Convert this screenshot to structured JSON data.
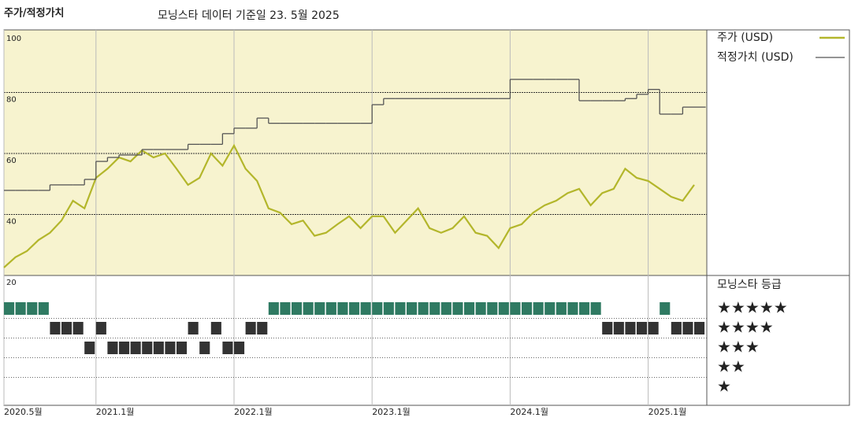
{
  "chart_data": {
    "type": "line",
    "title": "주가/적정가치",
    "subtitle": "모닝스타 데이터 기준일 23. 5월 2025",
    "x": [
      "2020-05",
      "2020-06",
      "2020-07",
      "2020-08",
      "2020-09",
      "2020-10",
      "2020-11",
      "2020-12",
      "2021-01",
      "2021-02",
      "2021-03",
      "2021-04",
      "2021-05",
      "2021-06",
      "2021-07",
      "2021-08",
      "2021-09",
      "2021-10",
      "2021-11",
      "2021-12",
      "2022-01",
      "2022-02",
      "2022-03",
      "2022-04",
      "2022-05",
      "2022-06",
      "2022-07",
      "2022-08",
      "2022-09",
      "2022-10",
      "2022-11",
      "2022-12",
      "2023-01",
      "2023-02",
      "2023-03",
      "2023-04",
      "2023-05",
      "2023-06",
      "2023-07",
      "2023-08",
      "2023-09",
      "2023-10",
      "2023-11",
      "2023-12",
      "2024-01",
      "2024-02",
      "2024-03",
      "2024-04",
      "2024-05",
      "2024-06",
      "2024-07",
      "2024-08",
      "2024-09",
      "2024-10",
      "2024-11",
      "2024-12",
      "2025-01",
      "2025-02",
      "2025-03",
      "2025-04",
      "2025-05"
    ],
    "xticks": [
      {
        "value": "2020-05",
        "label": "2020.5월"
      },
      {
        "value": "2021-01",
        "label": "2021.1월"
      },
      {
        "value": "2022-01",
        "label": "2022.1월"
      },
      {
        "value": "2023-01",
        "label": "2023.1월"
      },
      {
        "value": "2024-01",
        "label": "2024.1월"
      },
      {
        "value": "2025-01",
        "label": "2025.1월"
      }
    ],
    "ylim": [
      20,
      100
    ],
    "yticks": [
      20,
      40,
      60,
      80,
      100
    ],
    "grid": true,
    "series": [
      {
        "name": "주가 (USD)",
        "color": "#b3b62b",
        "values": [
          22.6,
          26,
          28,
          31.6,
          34,
          38,
          44.5,
          42,
          52,
          55,
          58.7,
          57.4,
          61,
          58.7,
          60,
          55,
          49.7,
          52,
          60,
          56,
          62.6,
          55,
          51,
          42,
          40.6,
          36.8,
          38,
          33,
          34,
          36.8,
          39.4,
          35.5,
          39.4,
          39.4,
          34,
          38,
          42,
          35.5,
          34,
          35.5,
          39.4,
          34,
          33,
          29,
          35.5,
          36.8,
          40.6,
          43,
          44.5,
          47,
          48.4,
          43,
          47,
          48.4,
          55,
          52,
          51,
          48.4,
          45.8,
          44.5,
          49.7
        ]
      },
      {
        "name": "적정가치 (USD)",
        "color": "#555555",
        "step": true,
        "values": [
          47.9,
          47.9,
          47.9,
          47.9,
          49.7,
          49.7,
          49.7,
          51.5,
          57.4,
          58.7,
          59.5,
          59.5,
          61.3,
          61.3,
          61.3,
          61.3,
          63,
          63,
          63,
          66.5,
          68.3,
          68.3,
          71.6,
          69.9,
          69.9,
          69.9,
          69.9,
          69.9,
          69.9,
          69.9,
          69.9,
          69.9,
          76,
          78,
          78,
          78,
          78,
          78,
          78,
          78,
          78,
          78,
          78,
          78,
          84.3,
          84.3,
          84.3,
          84.3,
          84.3,
          84.3,
          77.3,
          77.3,
          77.3,
          77.3,
          78,
          79.4,
          81,
          72.9,
          72.9,
          75.2,
          75.2
        ]
      }
    ],
    "rating": {
      "title": "모닝스타 등급",
      "labels": [
        "★★★★★",
        "★★★★",
        "★★★",
        "★★",
        "★"
      ],
      "colors": [
        "#2f7a62",
        "#333333",
        "#333333",
        "#333333",
        "#333333"
      ],
      "values": [
        5,
        5,
        5,
        5,
        4,
        4,
        4,
        3,
        4,
        3,
        3,
        3,
        3,
        3,
        3,
        3,
        4,
        3,
        4,
        3,
        3,
        4,
        4,
        5,
        5,
        5,
        5,
        5,
        5,
        5,
        5,
        5,
        5,
        5,
        5,
        5,
        5,
        5,
        5,
        5,
        5,
        5,
        5,
        5,
        5,
        5,
        5,
        5,
        5,
        5,
        5,
        5,
        4,
        4,
        4,
        4,
        4,
        5,
        4,
        4,
        4
      ]
    }
  }
}
